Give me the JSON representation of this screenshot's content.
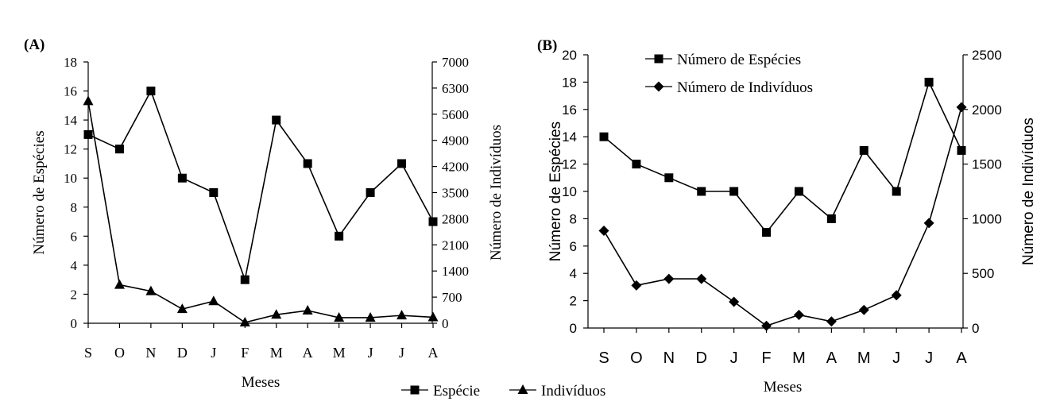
{
  "chart_data": [
    {
      "panel_label": "(A)",
      "type": "line",
      "categories": [
        "S",
        "O",
        "N",
        "D",
        "J",
        "F",
        "M",
        "A",
        "M",
        "J",
        "J",
        "A"
      ],
      "xlabel": "Meses",
      "ylabel": "Número de Espécies",
      "y2label": "Número de Indivíduos",
      "ylim": [
        0,
        18
      ],
      "y2lim": [
        0,
        7000
      ],
      "yticks": [
        0,
        2,
        4,
        6,
        8,
        10,
        12,
        14,
        16,
        18
      ],
      "y2ticks": [
        0,
        700,
        1400,
        2100,
        2800,
        3500,
        4200,
        4900,
        5600,
        6300,
        7000
      ],
      "legend": {
        "position": "bottom-center"
      },
      "series": [
        {
          "name": "Espécie",
          "axis": "left",
          "marker": "square",
          "values": [
            13,
            12,
            16,
            10,
            9,
            3,
            14,
            11,
            6,
            9,
            11,
            7
          ]
        },
        {
          "name": "Indivíduos",
          "axis": "right",
          "marker": "triangle",
          "values": [
            5950,
            1030,
            860,
            380,
            590,
            20,
            230,
            340,
            150,
            150,
            210,
            160
          ]
        }
      ]
    },
    {
      "panel_label": "(B)",
      "type": "line",
      "categories": [
        "S",
        "O",
        "N",
        "D",
        "J",
        "F",
        "M",
        "A",
        "M",
        "J",
        "J",
        "A"
      ],
      "xlabel": "Meses",
      "ylabel": "Número de Espécies",
      "y2label": "Número de Indivíduos",
      "ylim": [
        0,
        20
      ],
      "y2lim": [
        0,
        2500
      ],
      "yticks": [
        0,
        2,
        4,
        6,
        8,
        10,
        12,
        14,
        16,
        18,
        20
      ],
      "y2ticks": [
        0,
        500,
        1000,
        1500,
        2000,
        2500
      ],
      "legend": {
        "position": "top-left"
      },
      "series": [
        {
          "name": "Número de Espécies",
          "axis": "left",
          "marker": "square",
          "values": [
            14,
            12,
            11,
            10,
            10,
            7,
            10,
            8,
            13,
            10,
            18,
            13
          ]
        },
        {
          "name": "Número de Indivíduos",
          "axis": "right",
          "marker": "diamond",
          "values": [
            890,
            390,
            450,
            450,
            240,
            20,
            120,
            60,
            165,
            300,
            960,
            2020
          ]
        }
      ]
    }
  ]
}
